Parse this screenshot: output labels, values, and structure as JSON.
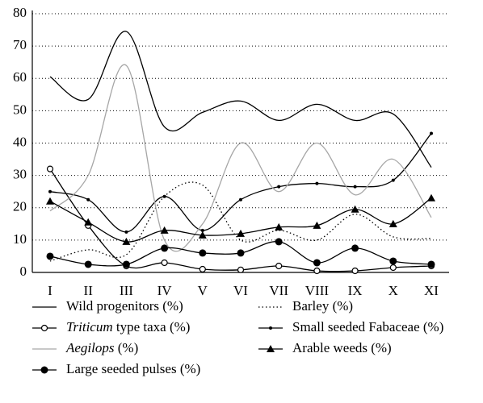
{
  "chart_data": {
    "type": "line",
    "categories": [
      "I",
      "II",
      "III",
      "IV",
      "V",
      "VI",
      "VII",
      "VIII",
      "IX",
      "X",
      "XI"
    ],
    "ylim": [
      0,
      80
    ],
    "yticks": [
      0,
      10,
      20,
      30,
      40,
      50,
      60,
      70,
      80
    ],
    "grid": true,
    "series": [
      {
        "name": "Wild progenitors (%)",
        "color": "#000000",
        "dash": "solid",
        "marker": "none",
        "values": [
          60.5,
          53.5,
          74.5,
          45,
          49.5,
          53,
          47,
          52,
          47,
          49,
          32.5
        ]
      },
      {
        "name": "Barley (%)",
        "color": "#000000",
        "dash": "dotted",
        "marker": "none",
        "values": [
          3.5,
          7,
          5.5,
          23.5,
          27,
          10,
          13,
          10,
          18,
          11,
          10.5
        ]
      },
      {
        "name": "Triticum type taxa (%)",
        "italic": true,
        "color": "#000000",
        "dash": "solid",
        "marker": "open-circle",
        "values": [
          32,
          14.5,
          2,
          3,
          1,
          0.8,
          2,
          0.5,
          0.5,
          1.5,
          2
        ]
      },
      {
        "name": "Small seeded Fabaceae (%)",
        "color": "#000000",
        "dash": "solid",
        "marker": "dot",
        "values": [
          25,
          22.5,
          12.5,
          23.5,
          13,
          22.5,
          26.5,
          27.5,
          26.5,
          28.5,
          43
        ]
      },
      {
        "name": "Aegilops (%)",
        "italic": true,
        "color": "#a6a6a6",
        "dash": "solid",
        "marker": "none",
        "values": [
          19,
          30,
          64,
          10,
          15,
          40,
          25,
          40,
          24,
          35,
          17
        ]
      },
      {
        "name": "Arable weeds (%)",
        "color": "#000000",
        "dash": "solid",
        "marker": "triangle",
        "values": [
          22,
          15.5,
          9.5,
          13,
          11.5,
          12,
          14,
          14.5,
          19.5,
          15,
          23
        ]
      },
      {
        "name": "Large seeded pulses (%)",
        "color": "#000000",
        "dash": "solid",
        "marker": "filled-circle",
        "values": [
          5,
          2.5,
          2.5,
          7.5,
          6,
          6,
          9.5,
          3,
          7.5,
          3.5,
          2.5
        ]
      }
    ]
  }
}
